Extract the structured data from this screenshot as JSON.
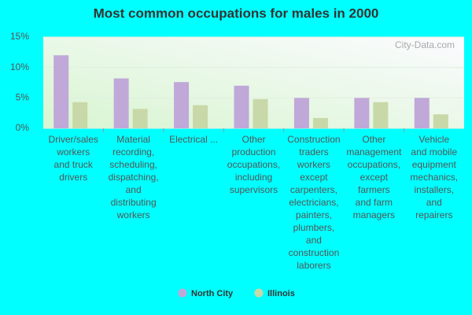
{
  "chart_data": {
    "type": "bar",
    "title": "Most common occupations for males in 2000",
    "watermark": "City-Data.com",
    "categories": [
      "Driver/sales\nworkers\nand truck\ndrivers",
      "Material\nrecording,\nscheduling,\ndispatching,\nand\ndistributing\nworkers",
      "Electrical ...",
      "Other\nproduction\noccupations,\nincluding\nsupervisors",
      "Construction\ntraders\nworkers\nexcept\ncarpenters,\nelectricians,\npainters,\nplumbers,\nand\nconstruction\nlaborers",
      "Other\nmanagement\noccupations,\nexcept\nfarmers\nand farm\nmanagers",
      "Vehicle\nand mobile\nequipment\nmechanics,\ninstallers,\nand\nrepairers"
    ],
    "series": [
      {
        "name": "North City",
        "color": "#c0a8d8",
        "values": [
          12.0,
          8.2,
          7.6,
          7.0,
          5.0,
          5.0,
          5.0
        ]
      },
      {
        "name": "Illinois",
        "color": "#c8d8a8",
        "values": [
          4.3,
          3.2,
          3.8,
          4.8,
          1.7,
          4.3,
          2.3
        ]
      }
    ],
    "ylim": [
      0,
      15
    ],
    "yticks": [
      {
        "value": 0,
        "label": "0%"
      },
      {
        "value": 5,
        "label": "5%"
      },
      {
        "value": 10,
        "label": "10%"
      },
      {
        "value": 15,
        "label": "15%"
      }
    ],
    "grid": true,
    "legend": "bottom"
  }
}
